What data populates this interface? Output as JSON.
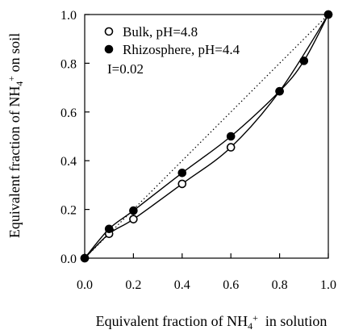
{
  "chart_data": {
    "type": "scatter",
    "xlabel_prefix": "Equivalent fraction of NH",
    "xlabel_sub": "4",
    "xlabel_sup": "+",
    "xlabel_suffix": "  in solution",
    "ylabel_prefix": "Equivalent fraction of NH",
    "ylabel_sub": "4",
    "ylabel_sup": "+",
    "ylabel_suffix": " on soil",
    "xlim": [
      0,
      1
    ],
    "ylim": [
      0,
      1
    ],
    "xticks": [
      "0.0",
      "0.2",
      "0.4",
      "0.6",
      "0.8",
      "1.0"
    ],
    "yticks": [
      "0.0",
      "0.2",
      "0.4",
      "0.6",
      "0.8",
      "1.0"
    ],
    "grid": false,
    "legend_position": "top-left",
    "annotation": "I=0.02",
    "reference_line": "1:1 dotted diagonal",
    "series": [
      {
        "name": "Bulk, pH=4.8",
        "marker": "open-circle",
        "x": [
          0,
          0.1,
          0.2,
          0.4,
          0.6,
          0.8,
          1.0
        ],
        "y": [
          0,
          0.1,
          0.16,
          0.305,
          0.455,
          0.685,
          1.0
        ]
      },
      {
        "name": "Rhizosphere, pH=4.4",
        "marker": "filled-circle",
        "x": [
          0,
          0.1,
          0.2,
          0.4,
          0.6,
          0.8,
          0.9,
          1.0
        ],
        "y": [
          0,
          0.12,
          0.195,
          0.35,
          0.5,
          0.685,
          0.81,
          1.0
        ]
      }
    ]
  }
}
